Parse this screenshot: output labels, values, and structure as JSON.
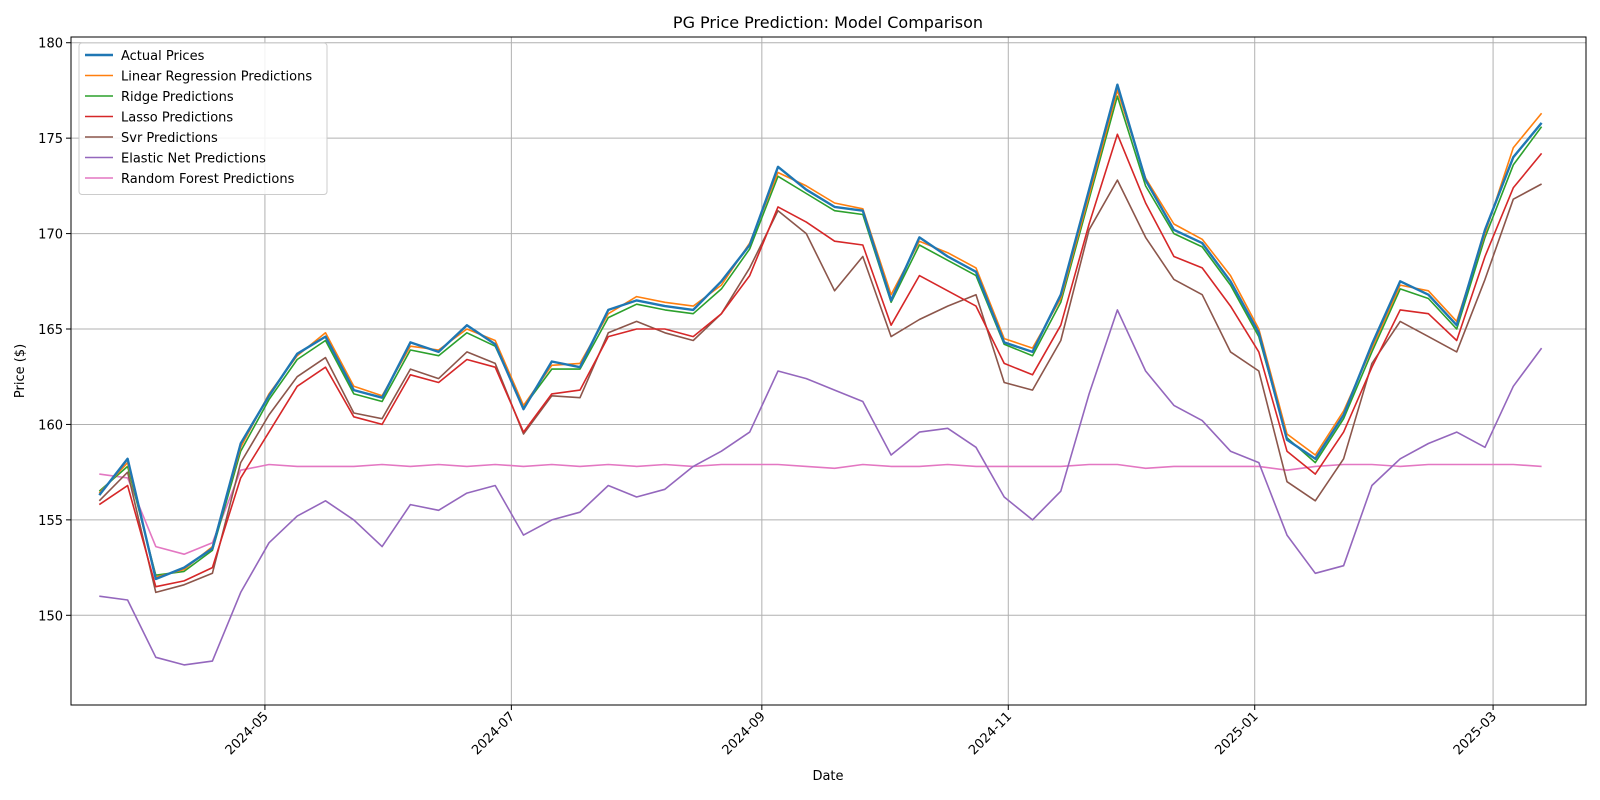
{
  "chart_data": {
    "type": "line",
    "title": "PG Price Prediction: Model Comparison",
    "xlabel": "Date",
    "ylabel": "Price ($)",
    "x_tick_labels": [
      "2024-05",
      "2024-07",
      "2024-09",
      "2024-11",
      "2025-01",
      "2025-03"
    ],
    "y_ticks": [
      150,
      155,
      160,
      165,
      170,
      175,
      180
    ],
    "x_range": [
      "2024-03-14",
      "2025-03-24"
    ],
    "ylim": [
      145.3,
      180.3
    ],
    "grid": true,
    "legend_position": "upper-left",
    "dates": [
      "2024-03-21",
      "2024-03-28",
      "2024-04-04",
      "2024-04-11",
      "2024-04-18",
      "2024-04-25",
      "2024-05-02",
      "2024-05-09",
      "2024-05-16",
      "2024-05-23",
      "2024-05-30",
      "2024-06-06",
      "2024-06-13",
      "2024-06-20",
      "2024-06-27",
      "2024-07-04",
      "2024-07-11",
      "2024-07-18",
      "2024-07-25",
      "2024-08-01",
      "2024-08-08",
      "2024-08-15",
      "2024-08-22",
      "2024-08-29",
      "2024-09-05",
      "2024-09-12",
      "2024-09-19",
      "2024-09-26",
      "2024-10-03",
      "2024-10-10",
      "2024-10-17",
      "2024-10-24",
      "2024-10-31",
      "2024-11-07",
      "2024-11-14",
      "2024-11-21",
      "2024-11-28",
      "2024-12-05",
      "2024-12-12",
      "2024-12-19",
      "2024-12-26",
      "2025-01-02",
      "2025-01-09",
      "2025-01-16",
      "2025-01-23",
      "2025-01-30",
      "2025-02-06",
      "2025-02-13",
      "2025-02-20",
      "2025-02-27",
      "2025-03-06",
      "2025-03-13"
    ],
    "series": [
      {
        "name": "Actual Prices",
        "color": "#1f77b4",
        "width": 2.4,
        "values": [
          156.3,
          158.2,
          151.9,
          152.5,
          153.5,
          159.0,
          161.5,
          163.7,
          164.6,
          161.8,
          161.4,
          164.3,
          163.8,
          165.2,
          164.2,
          160.8,
          163.3,
          163.0,
          166.0,
          166.5,
          166.2,
          166.0,
          167.5,
          169.4,
          173.5,
          172.3,
          171.4,
          171.2,
          166.5,
          169.8,
          168.8,
          168.0,
          164.3,
          163.8,
          166.8,
          172.3,
          177.8,
          172.8,
          170.2,
          169.5,
          167.5,
          164.8,
          159.2,
          158.2,
          160.5,
          164.2,
          167.5,
          166.8,
          165.2,
          170.2,
          174.0,
          175.8
        ]
      },
      {
        "name": "Linear Regression Predictions",
        "color": "#ff7f0e",
        "width": 1.6,
        "values": [
          156.4,
          158.0,
          152.0,
          152.4,
          153.6,
          158.8,
          161.6,
          163.6,
          164.8,
          162.0,
          161.5,
          164.1,
          163.9,
          165.0,
          164.4,
          161.0,
          163.1,
          163.2,
          165.8,
          166.7,
          166.4,
          166.2,
          167.3,
          169.5,
          173.2,
          172.5,
          171.6,
          171.3,
          166.8,
          169.6,
          169.0,
          168.2,
          164.5,
          164.0,
          166.6,
          172.0,
          177.5,
          172.9,
          170.5,
          169.7,
          167.8,
          165.0,
          159.5,
          158.4,
          160.7,
          164.0,
          167.3,
          167.0,
          165.4,
          170.0,
          174.5,
          176.3
        ]
      },
      {
        "name": "Ridge Predictions",
        "color": "#2ca02c",
        "width": 1.6,
        "values": [
          156.5,
          157.8,
          152.1,
          152.3,
          153.4,
          158.6,
          161.3,
          163.4,
          164.4,
          161.6,
          161.2,
          163.9,
          163.6,
          164.8,
          164.1,
          160.9,
          162.9,
          162.9,
          165.6,
          166.3,
          166.0,
          165.8,
          167.1,
          169.2,
          173.0,
          172.1,
          171.2,
          171.0,
          166.4,
          169.4,
          168.6,
          167.8,
          164.2,
          163.6,
          166.4,
          171.8,
          177.2,
          172.5,
          170.0,
          169.3,
          167.3,
          164.6,
          159.3,
          158.0,
          160.3,
          163.8,
          167.1,
          166.6,
          165.0,
          169.8,
          173.6,
          175.6
        ]
      },
      {
        "name": "Lasso Predictions",
        "color": "#d62728",
        "width": 1.6,
        "values": [
          155.8,
          156.8,
          151.5,
          151.8,
          152.5,
          157.2,
          159.6,
          162.0,
          163.0,
          160.4,
          160.0,
          162.6,
          162.2,
          163.4,
          163.0,
          159.6,
          161.6,
          161.8,
          164.6,
          165.0,
          165.0,
          164.6,
          165.8,
          167.8,
          171.4,
          170.6,
          169.6,
          169.4,
          165.2,
          167.8,
          167.0,
          166.2,
          163.2,
          162.6,
          165.2,
          170.5,
          175.2,
          171.6,
          168.8,
          168.2,
          166.2,
          163.8,
          158.6,
          157.4,
          159.6,
          163.0,
          166.0,
          165.8,
          164.4,
          168.8,
          172.4,
          174.2
        ]
      },
      {
        "name": "Svr Predictions",
        "color": "#8c564b",
        "width": 1.6,
        "values": [
          156.0,
          157.5,
          151.2,
          151.6,
          152.2,
          158.0,
          160.5,
          162.5,
          163.5,
          160.6,
          160.3,
          162.9,
          162.4,
          163.8,
          163.2,
          159.5,
          161.5,
          161.4,
          164.8,
          165.4,
          164.8,
          164.4,
          165.8,
          168.2,
          171.2,
          170.0,
          167.0,
          168.8,
          164.6,
          165.5,
          166.2,
          166.8,
          162.2,
          161.8,
          164.4,
          170.2,
          172.8,
          169.8,
          167.6,
          166.8,
          163.8,
          162.8,
          157.0,
          156.0,
          158.2,
          163.2,
          165.4,
          164.6,
          163.8,
          167.6,
          171.8,
          172.6
        ]
      },
      {
        "name": "Elastic Net Predictions",
        "color": "#9467bd",
        "width": 1.6,
        "values": [
          151.0,
          150.8,
          147.8,
          147.4,
          147.6,
          151.2,
          153.8,
          155.2,
          156.0,
          155.0,
          153.6,
          155.8,
          155.5,
          156.4,
          156.8,
          154.2,
          155.0,
          155.4,
          156.8,
          156.2,
          156.6,
          157.8,
          158.6,
          159.6,
          162.8,
          162.4,
          161.8,
          161.2,
          158.4,
          159.6,
          159.8,
          158.8,
          156.2,
          155.0,
          156.5,
          161.6,
          166.0,
          162.8,
          161.0,
          160.2,
          158.6,
          158.0,
          154.2,
          152.2,
          152.6,
          156.8,
          158.2,
          159.0,
          159.6,
          158.8,
          162.0,
          164.0
        ]
      },
      {
        "name": "Random Forest Predictions",
        "color": "#e377c2",
        "width": 1.6,
        "values": [
          157.4,
          157.2,
          153.6,
          153.2,
          153.8,
          157.6,
          157.9,
          157.8,
          157.8,
          157.8,
          157.9,
          157.8,
          157.9,
          157.8,
          157.9,
          157.8,
          157.9,
          157.8,
          157.9,
          157.8,
          157.9,
          157.8,
          157.9,
          157.9,
          157.9,
          157.8,
          157.7,
          157.9,
          157.8,
          157.8,
          157.9,
          157.8,
          157.8,
          157.8,
          157.8,
          157.9,
          157.9,
          157.7,
          157.8,
          157.8,
          157.8,
          157.8,
          157.6,
          157.8,
          157.9,
          157.9,
          157.8,
          157.9,
          157.9,
          157.9,
          157.9,
          157.8
        ]
      }
    ]
  }
}
